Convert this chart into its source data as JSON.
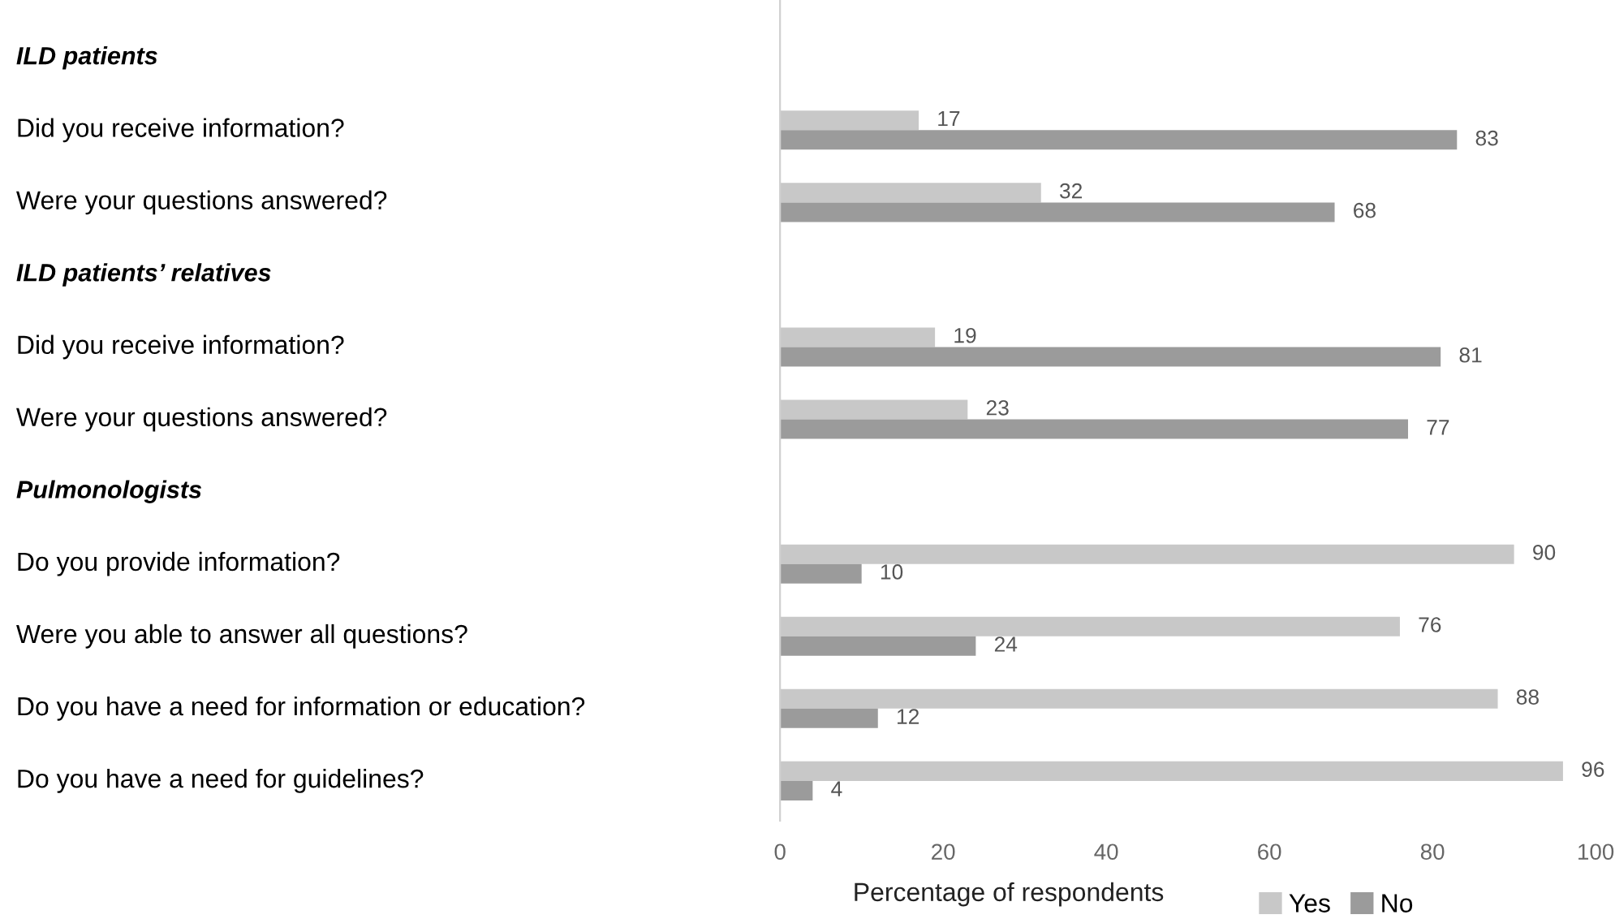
{
  "chart_data": {
    "type": "bar",
    "orientation": "horizontal",
    "categories": [
      "ILD patients",
      "Did you receive information?",
      "Were your questions answered?",
      "ILD patients’ relatives",
      "Did you receive information?",
      "Were your questions answered?",
      "Pulmonologists",
      "Do you provide information?",
      "Were you able to answer all questions?",
      "Do you have a need for information or education?",
      "Do you have a need for guidelines?"
    ],
    "series": [
      {
        "name": "Yes",
        "color": "#c8c8c8",
        "values": [
          null,
          17,
          32,
          null,
          19,
          23,
          null,
          90,
          76,
          88,
          96
        ]
      },
      {
        "name": "No",
        "color": "#9b9b9b",
        "values": [
          null,
          83,
          68,
          null,
          81,
          77,
          null,
          10,
          24,
          12,
          4
        ]
      }
    ],
    "xlabel": "Percentage of respondents",
    "xlim": [
      0,
      100
    ],
    "xticks": [
      0,
      20,
      40,
      60,
      80,
      100
    ],
    "data_labels": true,
    "legend": "bottom",
    "grid": false
  }
}
